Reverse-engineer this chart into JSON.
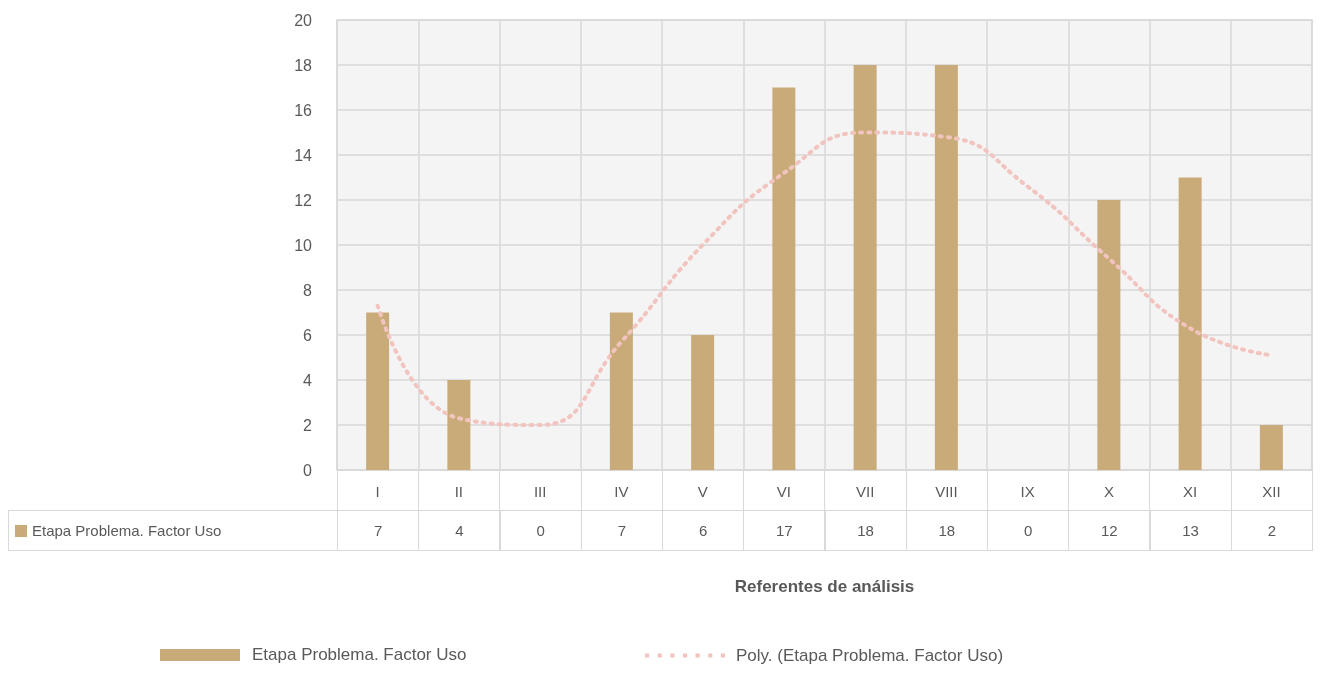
{
  "chart_data": {
    "type": "bar",
    "xlabel": "Referentes de análisis",
    "categories": [
      "I",
      "II",
      "III",
      "IV",
      "V",
      "VI",
      "VII",
      "VIII",
      "IX",
      "X",
      "XI",
      "XII"
    ],
    "series": [
      {
        "name": "Etapa Problema. Factor Uso",
        "color": "#c9ab7a",
        "values": [
          7,
          4,
          0,
          7,
          6,
          17,
          18,
          18,
          0,
          12,
          13,
          2
        ],
        "value_labels": [
          "7",
          "4",
          "0",
          "7",
          "6",
          "17",
          "18",
          "18",
          "0",
          "12",
          "13",
          "2"
        ]
      },
      {
        "name": "Poly. (Etapa Problema. Factor Uso)",
        "type": "line",
        "color": "#f2c4bf",
        "line_style": "dotted",
        "marker": "none",
        "values": [
          7.3,
          2.3,
          2.0,
          5.7,
          10.0,
          13.2,
          15.0,
          14.8,
          12.6,
          9.4,
          6.3,
          5.1
        ]
      }
    ],
    "ylim": [
      0,
      20
    ],
    "yticks": [
      0,
      2,
      4,
      6,
      8,
      10,
      12,
      14,
      16,
      18,
      20
    ],
    "grid": true,
    "legend": "bottom"
  }
}
